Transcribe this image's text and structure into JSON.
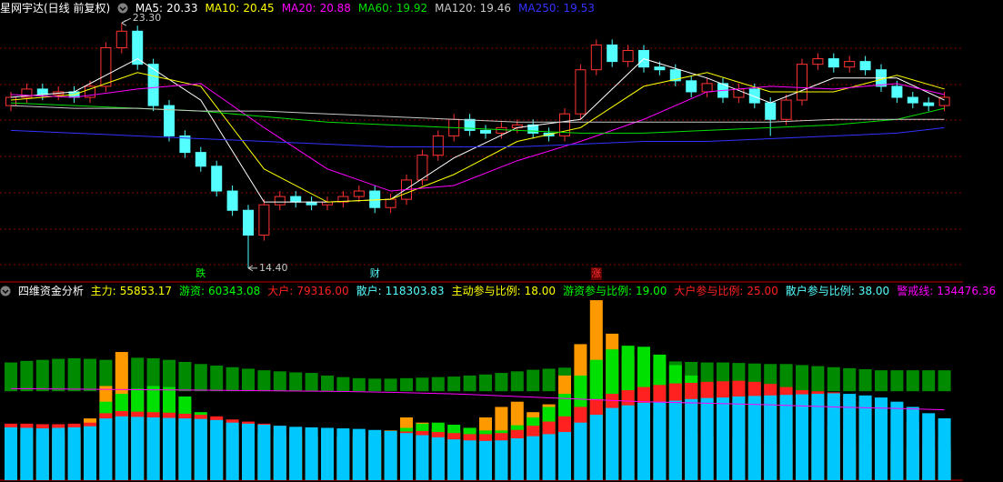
{
  "chart_data": [
    {
      "type": "candlestick",
      "title": "星网宇达(日线 前复权)",
      "ylim": [
        14,
        24
      ],
      "up_color": "#ff3232",
      "down_color": "#54ffff",
      "open": [
        20.3,
        20.6,
        20.9,
        20.7,
        20.8,
        20.6,
        21.0,
        22.4,
        23.0,
        21.8,
        20.3,
        19.2,
        18.6,
        18.1,
        17.2,
        16.5,
        15.6,
        16.7,
        17.0,
        16.8,
        16.7,
        16.8,
        17.0,
        17.2,
        16.6,
        16.9,
        17.6,
        18.5,
        19.2,
        19.8,
        19.4,
        19.3,
        19.5,
        19.6,
        19.3,
        19.2,
        20.0,
        21.6,
        22.5,
        21.9,
        22.3,
        21.7,
        21.6,
        21.2,
        20.8,
        21.1,
        20.6,
        20.9,
        20.4,
        19.8,
        20.5,
        21.8,
        22.0,
        21.7,
        21.9,
        21.6,
        21.0,
        20.6,
        20.4,
        20.3
      ],
      "close": [
        20.6,
        20.9,
        20.7,
        20.8,
        20.6,
        21.0,
        22.4,
        23.0,
        21.8,
        20.3,
        19.2,
        18.6,
        18.1,
        17.2,
        16.5,
        15.6,
        16.7,
        17.0,
        16.8,
        16.7,
        16.8,
        17.0,
        17.2,
        16.6,
        16.9,
        17.6,
        18.5,
        19.2,
        19.8,
        19.4,
        19.3,
        19.5,
        19.6,
        19.3,
        19.2,
        20.0,
        21.6,
        22.5,
        21.9,
        22.3,
        21.7,
        21.6,
        21.2,
        20.8,
        21.1,
        20.6,
        20.9,
        20.4,
        19.8,
        20.5,
        21.8,
        22.0,
        21.7,
        21.9,
        21.6,
        21.0,
        20.6,
        20.4,
        20.3,
        20.6
      ],
      "high": [
        20.8,
        21.1,
        21.1,
        21.0,
        21.0,
        21.2,
        22.6,
        23.3,
        23.2,
        22.0,
        20.5,
        19.4,
        18.8,
        18.3,
        17.4,
        16.7,
        16.9,
        17.2,
        17.2,
        17.0,
        17.0,
        17.2,
        17.4,
        17.4,
        17.1,
        17.8,
        18.7,
        19.4,
        20.0,
        20.0,
        19.6,
        19.7,
        19.8,
        19.8,
        19.5,
        20.2,
        21.8,
        22.7,
        22.7,
        22.5,
        22.5,
        21.9,
        21.8,
        21.4,
        21.3,
        21.3,
        21.1,
        21.1,
        20.6,
        20.7,
        22.0,
        22.2,
        22.2,
        22.1,
        22.1,
        21.8,
        21.2,
        20.8,
        20.6,
        20.8
      ],
      "low": [
        20.1,
        20.4,
        20.5,
        20.5,
        20.4,
        20.4,
        20.8,
        22.2,
        21.6,
        20.1,
        19.0,
        18.4,
        17.9,
        17.0,
        16.3,
        14.4,
        15.4,
        16.5,
        16.6,
        16.5,
        16.5,
        16.6,
        16.8,
        16.4,
        16.4,
        16.7,
        17.4,
        18.3,
        19.0,
        19.2,
        19.1,
        19.1,
        19.3,
        19.1,
        19.0,
        19.0,
        19.8,
        21.4,
        21.7,
        21.7,
        21.5,
        21.4,
        21.0,
        20.6,
        20.6,
        20.4,
        20.4,
        20.2,
        19.2,
        19.6,
        20.3,
        21.6,
        21.5,
        21.5,
        21.4,
        20.8,
        20.4,
        20.2,
        20.1,
        20.1
      ],
      "ma_x": [
        0,
        4,
        8,
        12,
        16,
        20,
        24,
        28,
        32,
        36,
        40,
        44,
        48,
        52,
        56,
        59
      ],
      "series": [
        {
          "name": "MA5:",
          "last": 20.33,
          "color": "#ffffff",
          "values": [
            20.6,
            20.8,
            22.0,
            20.5,
            16.8,
            16.8,
            16.9,
            18.4,
            19.5,
            19.8,
            22.0,
            21.3,
            20.4,
            21.3,
            21.3,
            20.5
          ]
        },
        {
          "name": "MA10:",
          "last": 20.45,
          "color": "#ffff00",
          "values": [
            20.5,
            20.7,
            21.5,
            21.0,
            18.0,
            16.8,
            16.9,
            17.8,
            19.0,
            19.5,
            21.0,
            21.5,
            20.8,
            20.8,
            21.4,
            20.9
          ]
        },
        {
          "name": "MA20:",
          "last": 20.88,
          "color": "#ff00ff",
          "values": [
            20.7,
            20.6,
            20.9,
            21.1,
            19.5,
            18.0,
            17.2,
            17.4,
            18.3,
            19.0,
            19.8,
            20.8,
            21.0,
            20.9,
            21.1,
            20.7
          ]
        },
        {
          "name": "MA60:",
          "last": 19.92,
          "color": "#00e000",
          "values": [
            20.4,
            20.3,
            20.2,
            20.1,
            19.9,
            19.7,
            19.6,
            19.5,
            19.4,
            19.3,
            19.3,
            19.4,
            19.5,
            19.6,
            19.8,
            20.2
          ]
        },
        {
          "name": "MA120:",
          "last": 19.46,
          "color": "#c8c8c8",
          "values": [
            20.3,
            20.2,
            20.2,
            20.1,
            20.1,
            20.0,
            19.9,
            19.8,
            19.7,
            19.7,
            19.7,
            19.7,
            19.7,
            19.8,
            19.8,
            19.8
          ]
        },
        {
          "name": "MA250:",
          "last": 19.53,
          "color": "#3232ff",
          "values": [
            19.4,
            19.3,
            19.2,
            19.1,
            19.0,
            18.9,
            18.8,
            18.8,
            18.8,
            18.9,
            19.0,
            19.0,
            19.1,
            19.2,
            19.3,
            19.5
          ]
        }
      ],
      "annotations": [
        {
          "index": 7,
          "value": 23.3,
          "label": "23.30"
        },
        {
          "index": 15,
          "value": 14.4,
          "label": "14.40"
        }
      ],
      "markers": [
        {
          "index": 12,
          "label": "跌",
          "color": "#00ff00"
        },
        {
          "index": 23,
          "label": "财",
          "color": "#54ffff"
        },
        {
          "index": 37,
          "label": "涨",
          "color": "#ff3232"
        }
      ]
    },
    {
      "type": "bar",
      "title": "四维资金分析",
      "ylim": [
        0,
        365000
      ],
      "series": [
        {
          "name": "主力:",
          "color": "#ffff00",
          "bar_color": "#ff9900",
          "values": [
            80000,
            80000,
            80000,
            80000,
            85000,
            118000,
            180000,
            245000,
            170000,
            120000,
            110000,
            105000,
            100000,
            95000,
            92000,
            90000,
            88000,
            86000,
            84000,
            82000,
            80000,
            80000,
            80000,
            80000,
            95000,
            120000,
            110000,
            100000,
            95000,
            100000,
            120000,
            140000,
            150000,
            130000,
            145000,
            200000,
            260000,
            344000,
            280000,
            240000,
            150000,
            120000,
            100000,
            90000,
            85000,
            80000,
            78000,
            76000,
            74000,
            72000,
            70000,
            68000,
            66000,
            64000,
            62000,
            60000,
            58000,
            57000,
            56000,
            55853.17
          ]
        },
        {
          "name": "游资:",
          "color": "#00ff00",
          "bar_color": "#00e000",
          "values": [
            90000,
            90000,
            90000,
            90000,
            92000,
            100000,
            150000,
            165000,
            175000,
            180000,
            178000,
            160000,
            130000,
            110000,
            100000,
            95000,
            92000,
            90000,
            88000,
            86000,
            85000,
            84000,
            83000,
            84000,
            90000,
            100000,
            108000,
            110000,
            106000,
            100000,
            95000,
            95000,
            105000,
            120000,
            140000,
            165000,
            200000,
            230000,
            250000,
            257000,
            255000,
            240000,
            220000,
            200000,
            185000,
            175000,
            165000,
            155000,
            145000,
            135000,
            125000,
            115000,
            105000,
            95000,
            88000,
            80000,
            72000,
            66000,
            62000,
            60343.08
          ]
        },
        {
          "name": "大户:",
          "color": "#ff2020",
          "bar_color": "#ff2020",
          "last_label": "79316.00",
          "values": [
            108000,
            108000,
            107000,
            107000,
            108000,
            110000,
            128000,
            132000,
            131000,
            130000,
            129000,
            127000,
            125000,
            122000,
            116000,
            112000,
            108000,
            104000,
            100000,
            98000,
            96000,
            94000,
            92000,
            92000,
            92000,
            93000,
            94000,
            92000,
            90000,
            88000,
            88000,
            90000,
            96000,
            104000,
            112000,
            122000,
            140000,
            155000,
            165000,
            172000,
            178000,
            182000,
            185000,
            186000,
            188000,
            189000,
            190000,
            188000,
            184000,
            178000,
            172000,
            170000,
            168000,
            160000,
            150000,
            140000,
            125000,
            110000,
            95000,
            79316
          ]
        },
        {
          "name": "散户:",
          "color": "#54ffff",
          "bar_color": "#00c8ff",
          "values": [
            101000,
            100000,
            99000,
            100000,
            101000,
            103000,
            118000,
            122000,
            121000,
            120000,
            119000,
            118000,
            117000,
            115000,
            110000,
            108000,
            106000,
            104000,
            102000,
            101000,
            100000,
            99000,
            98000,
            96000,
            94000,
            90000,
            86000,
            82000,
            78000,
            76000,
            75000,
            76000,
            80000,
            84000,
            88000,
            92000,
            110000,
            125000,
            138000,
            143000,
            148000,
            150000,
            152000,
            155000,
            157000,
            158000,
            160000,
            161000,
            162000,
            163000,
            164000,
            165000,
            166000,
            165000,
            162000,
            158000,
            150000,
            140000,
            128000,
            118303.83
          ]
        }
      ],
      "ratios": [
        {
          "name": "主动参与比例:",
          "value": 18,
          "label": "18.00",
          "color": "#ffff00"
        },
        {
          "name": "游资参与比例:",
          "value": 19,
          "label": "19.00",
          "color": "#00ff00"
        },
        {
          "name": "大户参与比例:",
          "value": 25,
          "label": "25.00",
          "color": "#ff2020"
        },
        {
          "name": "散户参与比例:",
          "value": 38,
          "label": "38.00",
          "color": "#54ffff"
        }
      ],
      "warn": {
        "name": "警戒线:",
        "color": "#ff00ff",
        "x": [
          0,
          4,
          8,
          12,
          16,
          20,
          24,
          28,
          32,
          36,
          40,
          44,
          48,
          52,
          56,
          59
        ],
        "values": [
          175000,
          174000,
          173000,
          172000,
          171000,
          170000,
          168000,
          165000,
          160000,
          155000,
          150000,
          147000,
          144000,
          140000,
          137000,
          134476.36
        ]
      },
      "band": {
        "color": "#008a00",
        "low": [
          170000,
          170000,
          170000,
          170000,
          170000,
          170000,
          170000,
          170000,
          170000,
          170000,
          170000,
          170000,
          170000,
          170000,
          170000,
          170000,
          170000,
          170000,
          170000,
          170000,
          170000,
          170000,
          170000,
          170000,
          170000,
          170000,
          170000,
          170000,
          170000,
          170000,
          170000,
          170000,
          170000,
          170000,
          170000,
          170000,
          170000,
          170000,
          170000,
          170000,
          170000,
          170000,
          170000,
          170000,
          170000,
          170000,
          170000,
          170000,
          170000,
          170000,
          170000,
          170000,
          170000,
          170000,
          170000,
          170000,
          170000,
          170000,
          170000,
          170000
        ],
        "high": [
          225000,
          228000,
          230000,
          232000,
          233000,
          232000,
          230000,
          232000,
          234000,
          233000,
          230000,
          226000,
          222000,
          219000,
          216000,
          213000,
          210000,
          208000,
          206000,
          205000,
          200000,
          197000,
          195000,
          194000,
          194000,
          195000,
          196000,
          197000,
          198000,
          200000,
          202000,
          205000,
          208000,
          211000,
          213000,
          215000,
          218000,
          222000,
          225000,
          227000,
          228000,
          228000,
          227000,
          226000,
          225000,
          225000,
          224000,
          223000,
          222000,
          222000,
          220000,
          218000,
          216000,
          214000,
          212000,
          210000,
          210000,
          210000,
          210000,
          210000
        ]
      }
    }
  ]
}
